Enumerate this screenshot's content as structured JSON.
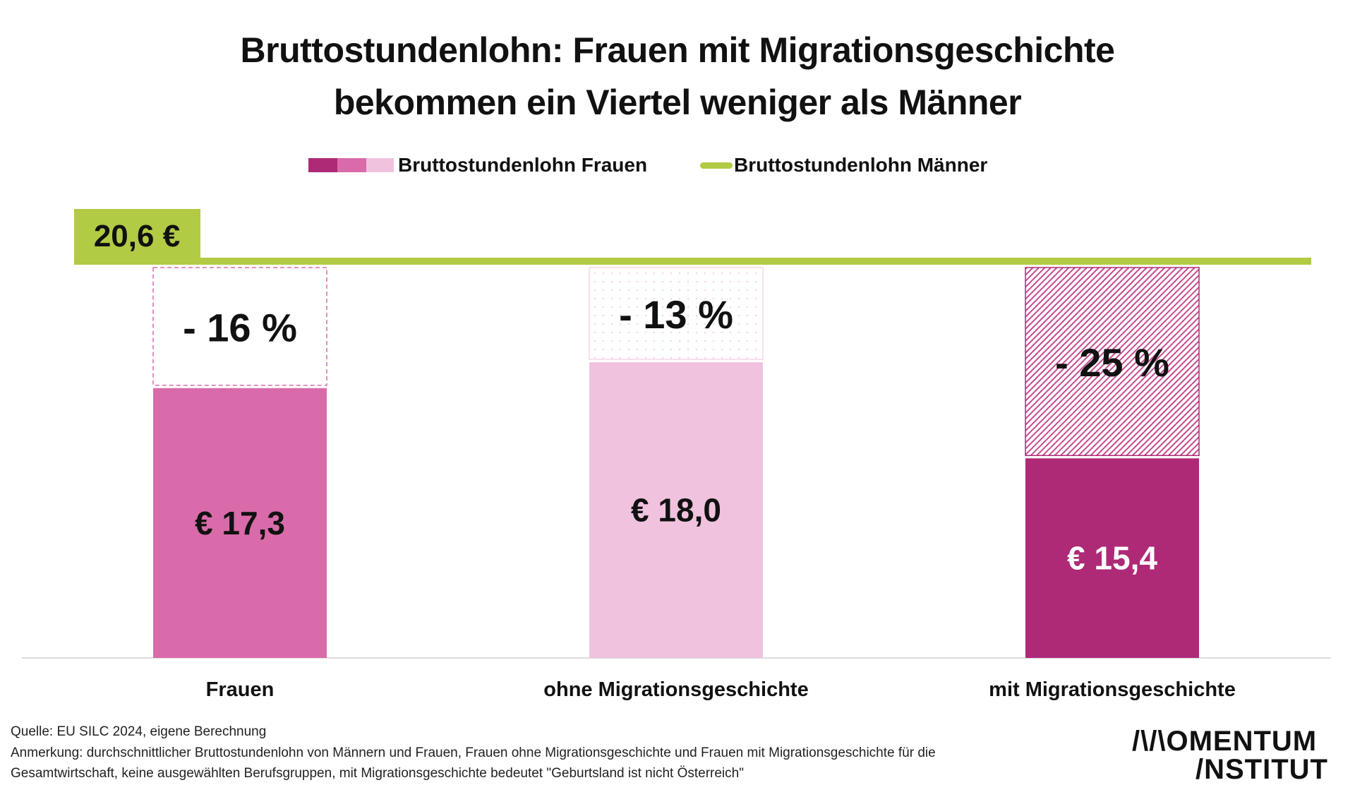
{
  "title_lines": [
    "Bruttostundenlohn: Frauen mit Migrationsgeschichte",
    "bekommen ein Viertel weniger als Männer"
  ],
  "legend": {
    "women": "Bruttostundenlohn Frauen",
    "men": "Bruttostundenlohn Männer"
  },
  "colors": {
    "men": "#B2CB44",
    "women_total": "#D96BAA",
    "women_without_migration": "#F0C2DE",
    "women_with_migration": "#AE2A77"
  },
  "chart_data": {
    "type": "bar",
    "categories": [
      "Frauen",
      "ohne Migrationsgeschichte",
      "mit Migrationsgeschichte"
    ],
    "values": [
      17.3,
      18.0,
      15.4
    ],
    "value_labels": [
      "€ 17,3",
      "€ 18,0",
      "€ 15,4"
    ],
    "gap_labels": [
      "- 16 %",
      "- 13 %",
      "- 25 %"
    ],
    "reference": {
      "value": 20.6,
      "label": "20,6 €"
    },
    "ylim": [
      10,
      20.6
    ],
    "grid": false
  },
  "footer": {
    "source": "Quelle: EU SILC 2024, eigene Berechnung",
    "note_line1": "Anmerkung: durchschnittlicher Bruttostundenlohn  von Männern und Frauen, Frauen ohne Migrationsgeschichte und Frauen mit Migrationsgeschichte für die",
    "note_line2": "Gesamtwirtschaft, keine ausgewählten Berufsgruppen, mit Migrationsgeschichte bedeutet \"Geburtsland ist nicht Österreich\""
  },
  "logo": {
    "line1": "/\\/\\OMENTUM",
    "line2": "/NSTITUT"
  }
}
